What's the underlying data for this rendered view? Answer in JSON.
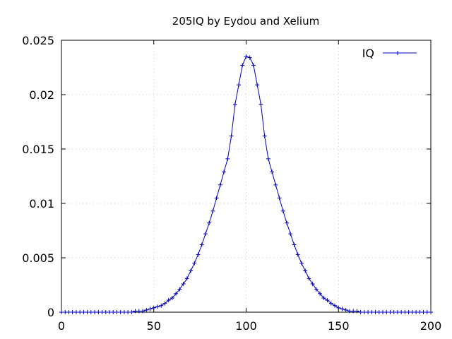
{
  "chart_data": {
    "type": "line",
    "title": "205IQ by Eydou and Xelium",
    "xlabel": "",
    "ylabel": "",
    "xlim": [
      0,
      200
    ],
    "ylim": [
      0,
      0.025
    ],
    "x_ticks": [
      {
        "value": 0,
        "label": "0"
      },
      {
        "value": 50,
        "label": "50"
      },
      {
        "value": 100,
        "label": "100"
      },
      {
        "value": 150,
        "label": "150"
      },
      {
        "value": 200,
        "label": "200"
      }
    ],
    "y_ticks": [
      {
        "value": 0,
        "label": "0"
      },
      {
        "value": 0.005,
        "label": "0.005"
      },
      {
        "value": 0.01,
        "label": "0.01"
      },
      {
        "value": 0.015,
        "label": "0.015"
      },
      {
        "value": 0.02,
        "label": "0.02"
      },
      {
        "value": 0.025,
        "label": "0.025"
      }
    ],
    "grid": true,
    "legend_position": "top-right",
    "series": [
      {
        "name": "IQ",
        "color": "#0000c0",
        "marker": "plus",
        "x": [
          0,
          2,
          4,
          6,
          8,
          10,
          12,
          14,
          16,
          18,
          20,
          22,
          24,
          26,
          28,
          30,
          32,
          34,
          36,
          38,
          40,
          42,
          44,
          46,
          48,
          50,
          52,
          54,
          56,
          58,
          60,
          62,
          64,
          66,
          68,
          70,
          72,
          74,
          76,
          78,
          80,
          82,
          84,
          86,
          88,
          90,
          92,
          94,
          96,
          98,
          100,
          102,
          104,
          106,
          108,
          110,
          112,
          114,
          116,
          118,
          120,
          122,
          124,
          126,
          128,
          130,
          132,
          134,
          136,
          138,
          140,
          142,
          144,
          146,
          148,
          150,
          152,
          154,
          156,
          158,
          160,
          162,
          164,
          166,
          168,
          170,
          172,
          174,
          176,
          178,
          180,
          182,
          184,
          186,
          188,
          190,
          192,
          194,
          196,
          198,
          200
        ],
        "y": [
          0.0,
          0.0,
          0.0,
          0.0,
          0.0,
          0.0,
          0.0,
          0.0,
          0.0,
          0.0,
          0.0,
          0.0,
          0.0,
          0.0,
          0.0,
          0.0,
          0.0,
          0.0,
          0.0,
          0.0,
          0.0001,
          0.0001,
          0.0001,
          0.0002,
          0.0003,
          0.0004,
          0.0005,
          0.0006,
          0.0008,
          0.0011,
          0.0013,
          0.0017,
          0.0021,
          0.0026,
          0.0031,
          0.0038,
          0.0045,
          0.0053,
          0.0062,
          0.0072,
          0.0082,
          0.0093,
          0.0105,
          0.0117,
          0.0129,
          0.0141,
          0.0162,
          0.0191,
          0.0209,
          0.0227,
          0.0235,
          0.0234,
          0.0227,
          0.0209,
          0.0191,
          0.0162,
          0.0141,
          0.0129,
          0.0117,
          0.0105,
          0.0093,
          0.0082,
          0.0072,
          0.0062,
          0.0053,
          0.0045,
          0.0038,
          0.0031,
          0.0026,
          0.0021,
          0.0017,
          0.0013,
          0.0011,
          0.0008,
          0.0006,
          0.0004,
          0.0003,
          0.0002,
          0.0001,
          0.0001,
          0.0001,
          0.0,
          0.0,
          0.0,
          0.0,
          0.0,
          0.0,
          0.0,
          0.0,
          0.0,
          0.0,
          0.0,
          0.0,
          0.0,
          0.0,
          0.0,
          0.0,
          0.0,
          0.0,
          0.0,
          0.0
        ]
      }
    ]
  }
}
